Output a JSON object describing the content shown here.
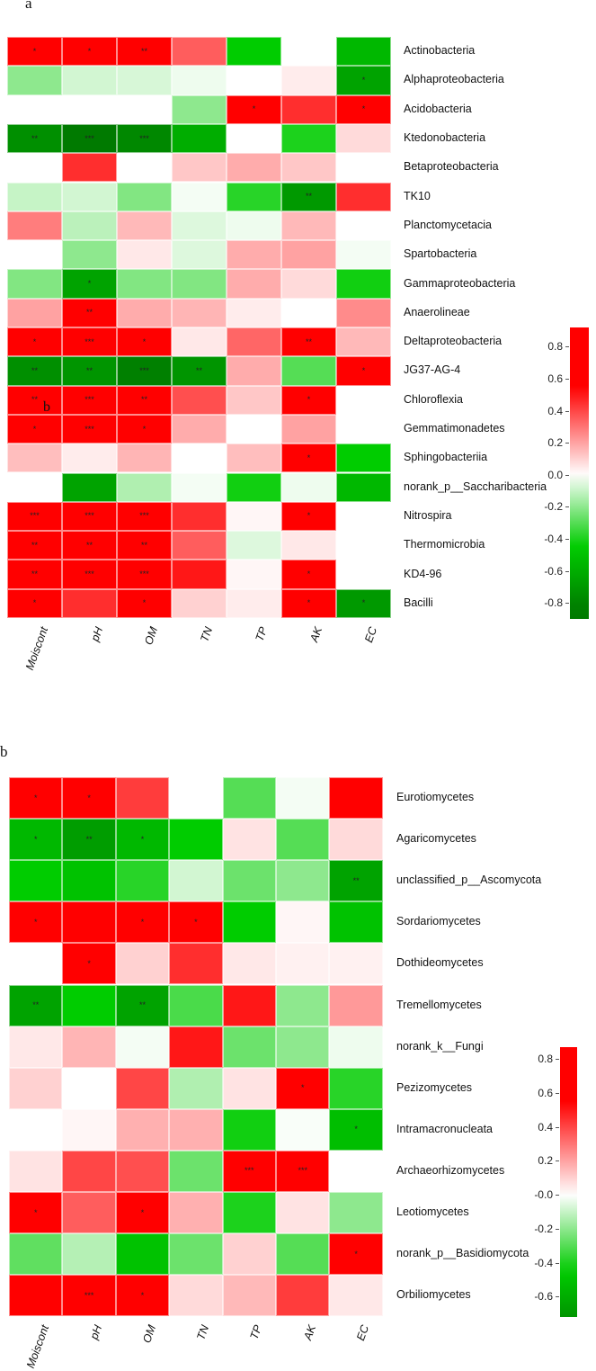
{
  "chart_data": [
    {
      "type": "heatmap",
      "panel_label": "a",
      "title": "",
      "xlabel": "",
      "ylabel": "",
      "columns": [
        "Moiscont",
        "pH",
        "OM",
        "TN",
        "TP",
        "AK",
        "EC"
      ],
      "rows": [
        "Actinobacteria",
        "Alphaproteobacteria",
        "Acidobacteria",
        "Ktedonobacteria",
        "Betaproteobacteria",
        "TK10",
        "Planctomycetacia",
        "Spartobacteria",
        "Gammaproteobacteria",
        "Anaerolineae",
        "Deltaproteobacteria",
        "JG37-AG-4",
        "Chloroflexia",
        "Gemmatimonadetes",
        "Sphingobacteriia",
        "norank_p__Saccharibacteria",
        "Nitrospira",
        "Thermomicrobia",
        "KD4-96",
        "Bacilli"
      ],
      "values": [
        [
          0.72,
          0.72,
          0.85,
          0.35,
          -0.45,
          0.0,
          -0.55
        ],
        [
          -0.2,
          -0.08,
          -0.07,
          -0.03,
          0.0,
          0.04,
          -0.65
        ],
        [
          0.0,
          0.0,
          0.0,
          -0.2,
          0.75,
          0.45,
          0.7
        ],
        [
          -0.75,
          -0.85,
          -0.78,
          -0.6,
          0.0,
          -0.4,
          0.08
        ],
        [
          0.0,
          0.45,
          0.0,
          0.12,
          0.18,
          0.12,
          0.0
        ],
        [
          -0.1,
          -0.08,
          -0.22,
          -0.02,
          -0.38,
          -0.7,
          0.45
        ],
        [
          0.28,
          -0.12,
          0.15,
          -0.06,
          -0.03,
          0.15,
          0.0
        ],
        [
          0.0,
          -0.2,
          0.05,
          -0.06,
          0.18,
          0.2,
          -0.02
        ],
        [
          -0.22,
          -0.65,
          -0.22,
          -0.22,
          0.18,
          0.08,
          -0.42
        ],
        [
          0.2,
          0.9,
          0.18,
          0.16,
          0.04,
          0.0,
          0.25
        ],
        [
          0.9,
          0.9,
          0.8,
          0.05,
          0.33,
          0.88,
          0.15
        ],
        [
          -0.75,
          -0.72,
          -0.82,
          -0.72,
          0.18,
          -0.3,
          0.78
        ],
        [
          0.9,
          0.9,
          0.9,
          0.38,
          0.12,
          0.9,
          0.0
        ],
        [
          0.78,
          0.9,
          0.78,
          0.18,
          0.0,
          0.2,
          0.0
        ],
        [
          0.14,
          0.04,
          0.16,
          0.0,
          0.14,
          0.75,
          -0.45
        ],
        [
          0.0,
          -0.65,
          -0.14,
          -0.02,
          -0.42,
          -0.03,
          -0.55
        ],
        [
          0.9,
          0.9,
          0.9,
          0.45,
          0.02,
          0.68,
          0.0
        ],
        [
          0.9,
          0.9,
          0.9,
          0.35,
          -0.06,
          0.05,
          0.0
        ],
        [
          0.9,
          0.9,
          0.9,
          0.5,
          0.02,
          0.78,
          0.0
        ],
        [
          0.9,
          0.45,
          0.9,
          0.1,
          0.04,
          0.9,
          -0.7
        ]
      ],
      "significance": [
        [
          "*",
          "*",
          "**",
          "",
          "",
          "",
          ""
        ],
        [
          "",
          "",
          "",
          "",
          "",
          "",
          "*"
        ],
        [
          "",
          "",
          "",
          "",
          "*",
          "",
          "*"
        ],
        [
          "**",
          "***",
          "***",
          "",
          "",
          "",
          ""
        ],
        [
          "",
          "",
          "",
          "",
          "",
          "",
          ""
        ],
        [
          "",
          "",
          "",
          "",
          "",
          "**",
          ""
        ],
        [
          "",
          "",
          "",
          "",
          "",
          "",
          ""
        ],
        [
          "",
          "",
          "",
          "",
          "",
          "",
          ""
        ],
        [
          "",
          "*",
          "",
          "",
          "",
          "",
          ""
        ],
        [
          "",
          "**",
          "",
          "",
          "",
          "",
          ""
        ],
        [
          "*",
          "***",
          "*",
          "",
          "",
          "**",
          ""
        ],
        [
          "**",
          "**",
          "***",
          "**",
          "",
          "",
          "*"
        ],
        [
          "**",
          "***",
          "**",
          "",
          "",
          "*",
          ""
        ],
        [
          "*",
          "***",
          "*",
          "",
          "",
          "",
          ""
        ],
        [
          "",
          "",
          "",
          "",
          "",
          "*",
          ""
        ],
        [
          "",
          "",
          "",
          "",
          "",
          "",
          ""
        ],
        [
          "***",
          "***",
          "***",
          "",
          "",
          "*",
          ""
        ],
        [
          "**",
          "**",
          "**",
          "",
          "",
          "",
          ""
        ],
        [
          "**",
          "***",
          "***",
          "",
          "",
          "*",
          ""
        ],
        [
          "*",
          "",
          "*",
          "",
          "",
          "*",
          "*"
        ]
      ],
      "colorbar": {
        "ticks": [
          "0.8",
          "0.6",
          "0.4",
          "0.2",
          "0.0",
          "-0.2",
          "-0.4",
          "-0.6",
          "-0.8"
        ],
        "range": [
          -0.9,
          0.92
        ],
        "low_color": "#007a00",
        "mid_low_color": "#00cc00",
        "mid_color": "#ffffff",
        "high_color": "#ff0000"
      },
      "stray_text": "b"
    },
    {
      "type": "heatmap",
      "panel_label": "b",
      "title": "",
      "xlabel": "",
      "ylabel": "",
      "columns": [
        "Moiscont",
        "pH",
        "OM",
        "TN",
        "TP",
        "AK",
        "EC"
      ],
      "rows": [
        "Eurotiomycetes",
        "Agaricomycetes",
        "unclassified_p__Ascomycota",
        "Sordariomycetes",
        "Dothideomycetes",
        "Tremellomycetes",
        "norank_k__Fungi",
        "Pezizomycetes",
        "Intramacronucleata",
        "Archaeorhizomycetes",
        "Leotiomycetes",
        "norank_p__Basidiomycota",
        "Orbiliomycetes"
      ],
      "values": [
        [
          0.75,
          0.85,
          0.42,
          0.0,
          -0.3,
          -0.02,
          0.55
        ],
        [
          -0.55,
          -0.68,
          -0.55,
          -0.45,
          0.06,
          -0.3,
          0.08
        ],
        [
          -0.45,
          -0.5,
          -0.38,
          -0.08,
          -0.26,
          -0.2,
          -0.65
        ],
        [
          0.85,
          0.65,
          0.85,
          0.85,
          -0.45,
          0.02,
          -0.5
        ],
        [
          0.0,
          0.85,
          0.1,
          0.45,
          0.05,
          0.03,
          0.03
        ],
        [
          -0.65,
          -0.45,
          -0.65,
          -0.32,
          0.5,
          -0.2,
          0.22
        ],
        [
          0.05,
          0.16,
          -0.02,
          0.5,
          -0.26,
          -0.2,
          -0.03
        ],
        [
          0.1,
          0.0,
          0.4,
          -0.14,
          0.06,
          0.88,
          -0.38
        ],
        [
          0.0,
          0.02,
          0.17,
          0.17,
          -0.42,
          -0.01,
          -0.52
        ],
        [
          0.06,
          0.4,
          0.38,
          -0.26,
          0.88,
          0.88,
          0.0
        ],
        [
          0.85,
          0.35,
          0.85,
          0.17,
          -0.4,
          0.06,
          -0.2
        ],
        [
          -0.28,
          -0.13,
          -0.5,
          -0.26,
          0.1,
          -0.3,
          0.7
        ],
        [
          0.6,
          0.85,
          0.75,
          0.08,
          0.15,
          0.42,
          0.05
        ]
      ],
      "significance": [
        [
          "*",
          "*",
          "",
          "",
          "",
          "",
          ""
        ],
        [
          "*",
          "**",
          "*",
          "",
          "",
          "",
          ""
        ],
        [
          "",
          "",
          "",
          "",
          "",
          "",
          "**"
        ],
        [
          "*",
          "",
          "*",
          "*",
          "",
          "",
          ""
        ],
        [
          "",
          "*",
          "",
          "",
          "",
          "",
          ""
        ],
        [
          "**",
          "",
          "**",
          "",
          "",
          "",
          ""
        ],
        [
          "",
          "",
          "",
          "",
          "",
          "",
          ""
        ],
        [
          "",
          "",
          "",
          "",
          "",
          "*",
          ""
        ],
        [
          "",
          "",
          "",
          "",
          "",
          "",
          "*"
        ],
        [
          "",
          "",
          "",
          "",
          "***",
          "***",
          ""
        ],
        [
          "*",
          "",
          "*",
          "",
          "",
          "",
          ""
        ],
        [
          "",
          "",
          "",
          "",
          "",
          "",
          "*"
        ],
        [
          "",
          "***",
          "*",
          "",
          "",
          "",
          ""
        ]
      ],
      "colorbar": {
        "ticks": [
          "0.8",
          "0.6",
          "0.4",
          "0.2",
          "-0.0",
          "-0.2",
          "-0.4",
          "-0.6"
        ],
        "range": [
          -0.72,
          0.87
        ],
        "low_color": "#007a00",
        "mid_low_color": "#00cc00",
        "mid_color": "#ffffff",
        "high_color": "#ff0000"
      }
    }
  ]
}
